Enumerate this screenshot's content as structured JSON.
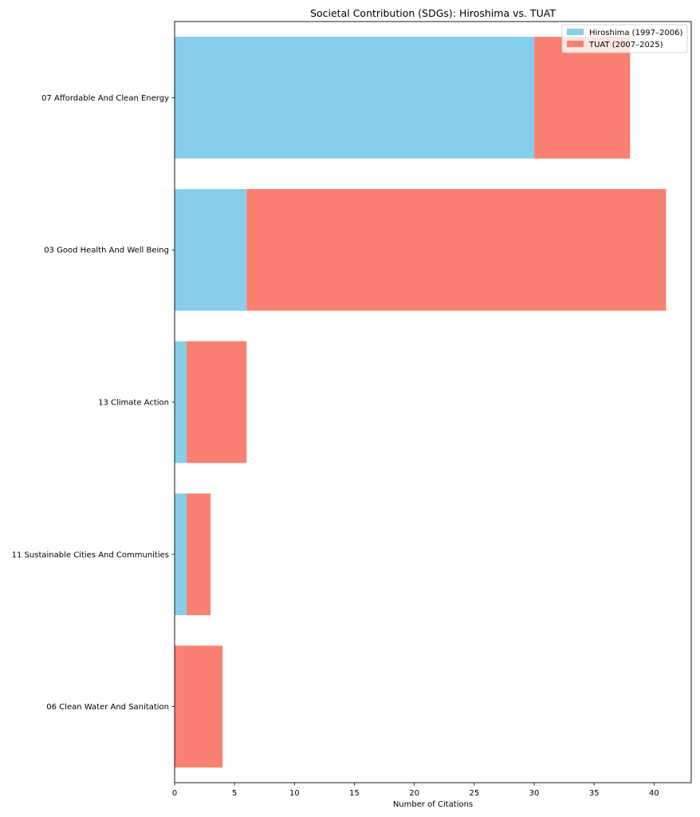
{
  "chart_data": {
    "type": "bar",
    "orientation": "horizontal",
    "stacked": true,
    "title": "Societal Contribution (SDGs): Hiroshima vs. TUAT",
    "xlabel": "Number of Citations",
    "ylabel": "",
    "xlim": [
      0,
      43.1
    ],
    "xticks": [
      0,
      5,
      10,
      15,
      20,
      25,
      30,
      35,
      40
    ],
    "xtick_labels": [
      "0",
      "5",
      "10",
      "15",
      "20",
      "25",
      "30",
      "35",
      "40"
    ],
    "grid": false,
    "legend_position": "top-right",
    "categories": [
      "07 Affordable And Clean Energy",
      "03 Good Health And Well Being",
      "13 Climate Action",
      "11 Sustainable Cities And Communities",
      "06 Clean Water And Sanitation"
    ],
    "series": [
      {
        "name": "Hiroshima (1997–2006)",
        "color": "#87ceeb",
        "values": [
          30,
          6,
          1,
          1,
          0
        ]
      },
      {
        "name": "TUAT (2007–2025)",
        "color": "#fa8072",
        "values": [
          8,
          35,
          5,
          2,
          4
        ]
      }
    ]
  }
}
